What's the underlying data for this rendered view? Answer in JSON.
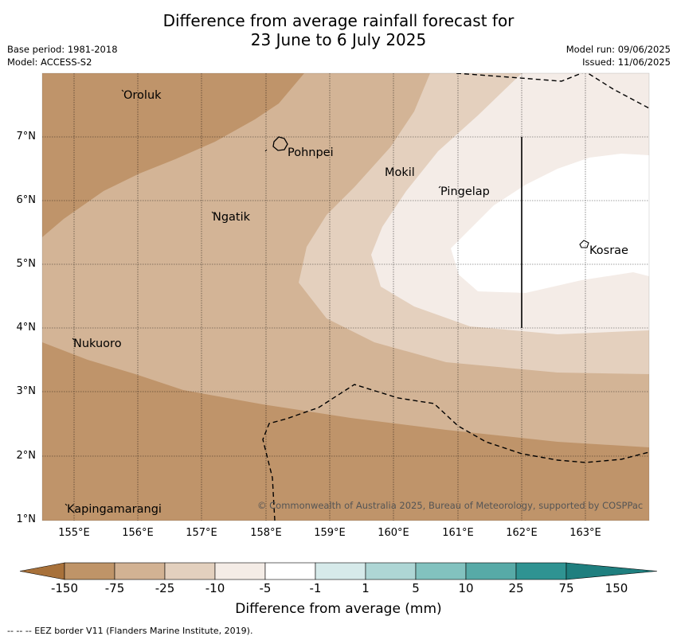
{
  "header": {
    "title_line1": "Difference from average rainfall forecast for",
    "title_line2": "23 June to 6 July 2025",
    "base_period": "Base period: 1981-2018",
    "model": "Model: ACCESS-S2",
    "model_run": "Model run: 09/06/2025",
    "issued": "Issued: 11/06/2025"
  },
  "map": {
    "lon_ticks": [
      "155°E",
      "156°E",
      "157°E",
      "158°E",
      "159°E",
      "160°E",
      "161°E",
      "162°E",
      "163°E"
    ],
    "lat_ticks": [
      "7°N",
      "6°N",
      "5°N",
      "4°N",
      "3°N",
      "2°N",
      "1°N"
    ],
    "places": {
      "oroluk": "Oroluk",
      "pohnpei": "Pohnpei",
      "mokil": "Mokil",
      "pingelap": "Pingelap",
      "ngatik": "Ngatik",
      "kosrae": "Kosrae",
      "nukuoro": "Nukuoro",
      "kapingamarangi": "Kapingamarangi"
    },
    "copyright": "© Commonwealth of Australia 2025, Bureau of Meteorology, supported by COSPPac"
  },
  "colorbar": {
    "title": "Difference from average (mm)",
    "ticks": [
      "-150",
      "-75",
      "-25",
      "-10",
      "-5",
      "-1",
      "1",
      "5",
      "10",
      "25",
      "75",
      "150"
    ],
    "colors": [
      "#a8713a",
      "#bf9468",
      "#d2b293",
      "#e3d0be",
      "#f4ece6",
      "#ffffff",
      "#d6eaea",
      "#aed6d5",
      "#82c2bf",
      "#57aaa7",
      "#2f9392",
      "#1f7f7f"
    ],
    "fill_colors": {
      "darkest": "#bb8c5b",
      "dark": "#c39a6d",
      "mid": "#d4b596",
      "light": "#e4d1bf",
      "lightest": "#f4ece6",
      "white": "#ffffff"
    }
  },
  "footnote": "--  --  -- EEZ border V11 (Flanders Marine Institute, 2019)."
}
